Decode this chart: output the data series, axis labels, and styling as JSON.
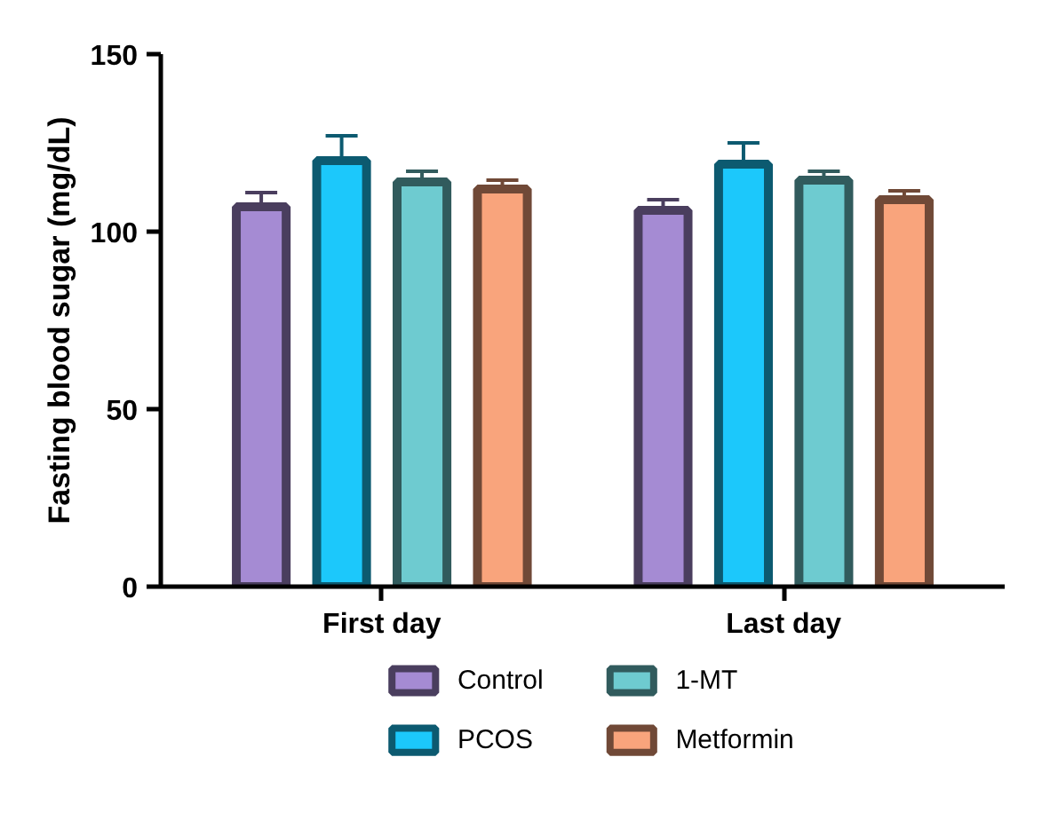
{
  "chart_data": {
    "type": "bar",
    "ylabel": "Fasting blood sugar (mg/dL)",
    "categories": [
      "First day",
      "Last day"
    ],
    "series": [
      {
        "name": "Control",
        "color": "#a58bd3",
        "values": [
          107,
          106
        ],
        "errors": [
          4,
          3
        ]
      },
      {
        "name": "PCOS",
        "color": "#1cc8fb",
        "values": [
          120,
          119
        ],
        "errors": [
          7,
          6
        ]
      },
      {
        "name": "1-MT",
        "color": "#6ecbd0",
        "values": [
          114,
          114.5
        ],
        "errors": [
          3,
          2.5
        ]
      },
      {
        "name": "Metformin",
        "color": "#f9a47c",
        "values": [
          112,
          109
        ],
        "errors": [
          2.5,
          2.5
        ]
      }
    ],
    "ylim": [
      0,
      150
    ],
    "yticks": [
      0,
      50,
      100,
      150
    ],
    "legend": "bottom",
    "grid": false
  }
}
